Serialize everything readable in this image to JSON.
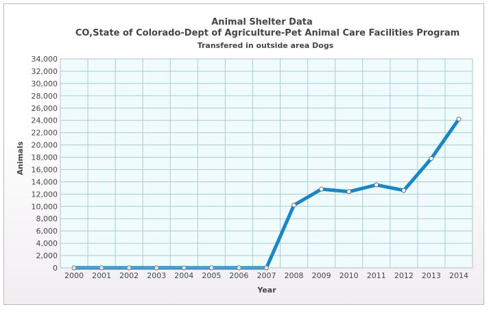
{
  "colors": {
    "line": "#1488cc",
    "plot_background": "#effbfd",
    "grid": "#a8cbd0",
    "marker_fill": "#ffffff",
    "text": "#454545"
  },
  "chart_data": {
    "type": "line",
    "title": "Animal Shelter Data",
    "subtitle": "CO,State of Colorado-Dept of Agriculture-Pet Animal Care Facilities Program",
    "subtitle2": "Transfered in outside area Dogs",
    "xlabel": "Year",
    "ylabel": "Animals",
    "ylim": [
      0,
      34000
    ],
    "y_tick_step": 2000,
    "y_tick_labels": [
      "0",
      "2,000",
      "4,000",
      "6,000",
      "8,000",
      "10,000",
      "12,000",
      "14,000",
      "16,000",
      "18,000",
      "20,000",
      "22,000",
      "24,000",
      "26,000",
      "28,000",
      "30,000",
      "32,000",
      "34,000"
    ],
    "grid": true,
    "legend": false,
    "categories": [
      "2000",
      "2001",
      "2002",
      "2003",
      "2004",
      "2005",
      "2006",
      "2007",
      "2008",
      "2009",
      "2010",
      "2011",
      "2012",
      "2013",
      "2014"
    ],
    "series": [
      {
        "values": [
          0,
          0,
          0,
          0,
          0,
          0,
          0,
          0,
          10200,
          12800,
          12400,
          13500,
          12600,
          17800,
          24200
        ]
      }
    ]
  }
}
